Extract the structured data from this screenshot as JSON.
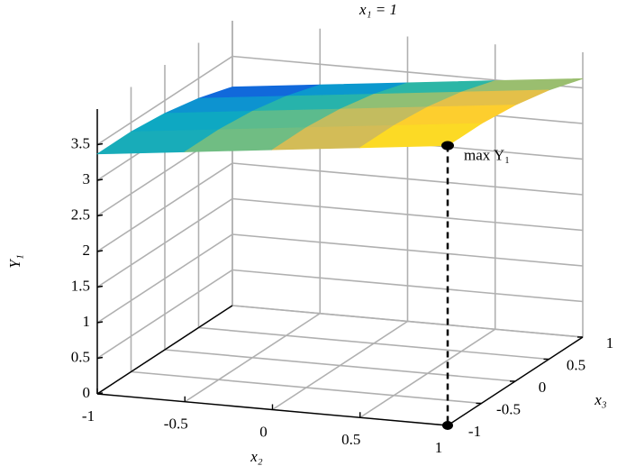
{
  "chart_data": {
    "type": "surface",
    "title": "x₁ = 1",
    "xlabel": "x₂",
    "ylabel": "x₃",
    "zlabel": "Y₁",
    "x": [
      -1,
      -0.5,
      0,
      0.5,
      1
    ],
    "y": [
      -1,
      -0.5,
      0,
      0.5,
      1
    ],
    "z": [
      [
        3.37,
        3.51,
        3.65,
        3.79,
        3.93
      ],
      [
        3.37,
        3.51,
        3.65,
        3.79,
        3.93
      ],
      [
        3.32,
        3.46,
        3.6,
        3.74,
        3.88
      ],
      [
        3.22,
        3.36,
        3.5,
        3.64,
        3.78
      ],
      [
        3.07,
        3.21,
        3.35,
        3.49,
        3.63
      ]
    ],
    "xlim": [
      -1,
      1
    ],
    "ylim": [
      -1,
      1
    ],
    "zlim": [
      0,
      4
    ],
    "xticks": [
      -1,
      -0.5,
      0,
      0.5,
      1
    ],
    "yticks": [
      -1,
      -0.5,
      0,
      0.5,
      1
    ],
    "zticks": [
      0,
      0.5,
      1,
      1.5,
      2,
      2.5,
      3,
      3.5
    ],
    "grid": true,
    "colormap": [
      "#352a87",
      "#0f5cdd",
      "#1481d6",
      "#06a4ca",
      "#2eb7a4",
      "#87bf77",
      "#d1bb59",
      "#fec832",
      "#f9fb0e"
    ],
    "annotation": {
      "x": 1,
      "y": -1,
      "value": 3.93,
      "label": "max Y₁"
    }
  }
}
